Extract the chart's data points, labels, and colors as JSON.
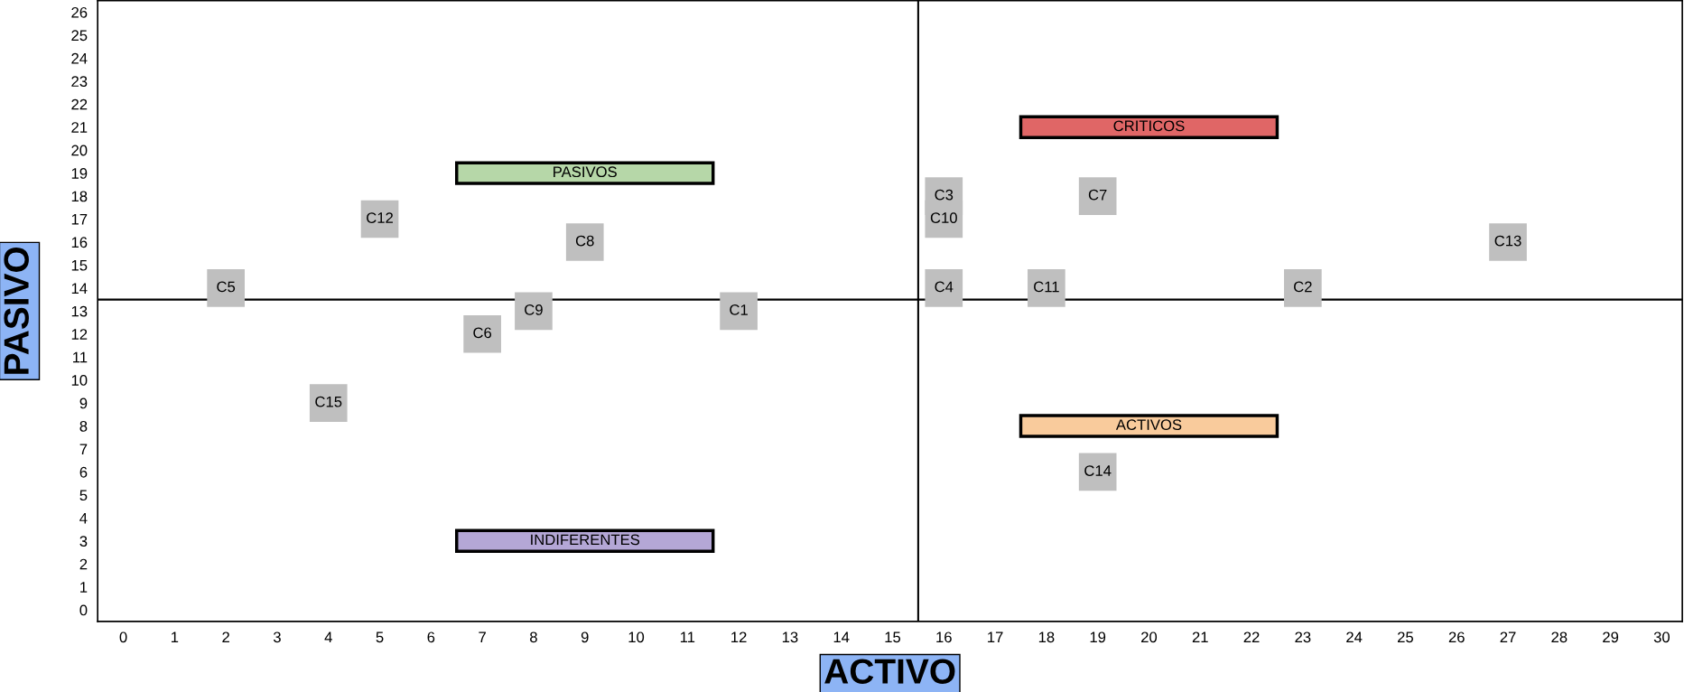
{
  "chart_data": {
    "type": "scatter",
    "xlabel": "ACTIVO",
    "ylabel": "PASIVO",
    "xlim": [
      -0.5,
      30.4
    ],
    "ylim": [
      -0.5,
      26.5
    ],
    "xticks": [
      0,
      1,
      2,
      3,
      4,
      5,
      6,
      7,
      8,
      9,
      10,
      11,
      12,
      13,
      14,
      15,
      16,
      17,
      18,
      19,
      20,
      21,
      22,
      23,
      24,
      25,
      26,
      27,
      28,
      29,
      30
    ],
    "yticks": [
      0,
      1,
      2,
      3,
      4,
      5,
      6,
      7,
      8,
      9,
      10,
      11,
      12,
      13,
      14,
      15,
      16,
      17,
      18,
      19,
      20,
      21,
      22,
      23,
      24,
      25,
      26
    ],
    "grid": false,
    "legend": false,
    "marker": "square",
    "series": [
      {
        "color": "#bfbfbf",
        "x": [
          2,
          5,
          9,
          8,
          12,
          7,
          4,
          16,
          16,
          16,
          18,
          19,
          23,
          27,
          19
        ],
        "values": [
          14,
          17,
          16,
          13,
          13,
          12,
          9,
          18,
          17,
          14,
          14,
          18,
          14,
          16,
          6
        ]
      }
    ],
    "ref_lines": [
      {
        "axis": "x",
        "value": 15.5,
        "color": "#000000"
      },
      {
        "axis": "y",
        "value": 13.5,
        "color": "#000000"
      }
    ],
    "annotations": [
      {
        "text": "C5",
        "x": 2,
        "y": 14
      },
      {
        "text": "C12",
        "x": 5,
        "y": 17
      },
      {
        "text": "C8",
        "x": 9,
        "y": 16
      },
      {
        "text": "C9",
        "x": 8,
        "y": 13
      },
      {
        "text": "C1",
        "x": 12,
        "y": 13
      },
      {
        "text": "C6",
        "x": 7,
        "y": 12
      },
      {
        "text": "C15",
        "x": 4,
        "y": 9
      },
      {
        "text": "C3",
        "x": 16,
        "y": 18
      },
      {
        "text": "C10",
        "x": 16,
        "y": 17
      },
      {
        "text": "C4",
        "x": 16,
        "y": 14
      },
      {
        "text": "C11",
        "x": 18,
        "y": 14
      },
      {
        "text": "C7",
        "x": 19,
        "y": 18
      },
      {
        "text": "C2",
        "x": 23,
        "y": 14
      },
      {
        "text": "C13",
        "x": 27,
        "y": 16
      },
      {
        "text": "C14",
        "x": 19,
        "y": 6
      }
    ],
    "bands": [
      {
        "axis": "y",
        "from": 18.5,
        "to": 19.5,
        "label": "PASIVOS",
        "color": "#b6d7a8"
      },
      {
        "axis": "y",
        "from": 20.5,
        "to": 21.5,
        "label": "CRITICOS",
        "color": "#e06666"
      },
      {
        "axis": "y",
        "from": 7.5,
        "to": 8.5,
        "label": "ACTIVOS",
        "color": "#f9cb9c"
      },
      {
        "axis": "y",
        "from": 2.5,
        "to": 3.5,
        "label": "INDIFERENTES",
        "color": "#b4a7d6"
      }
    ]
  }
}
